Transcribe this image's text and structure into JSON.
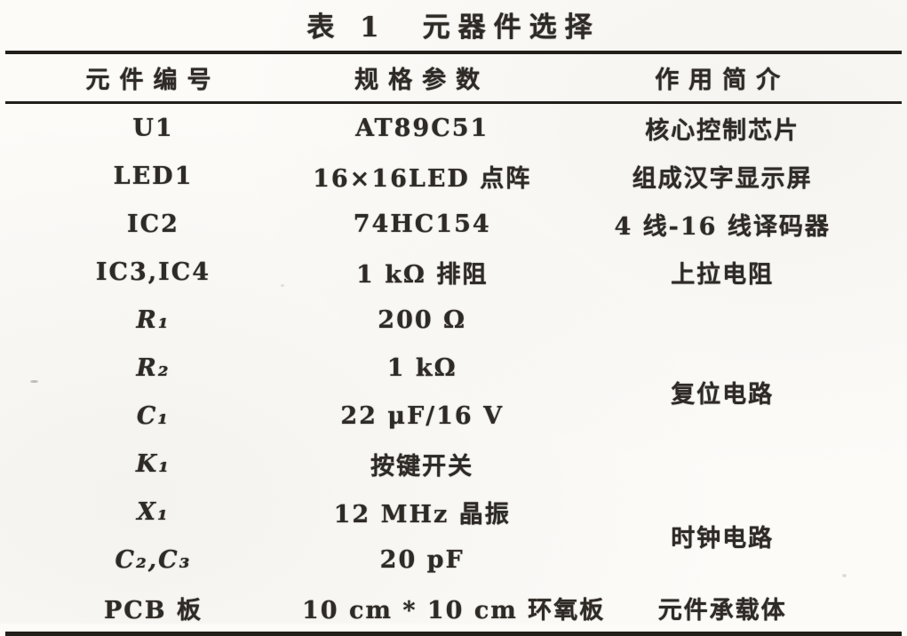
{
  "page": {
    "title": "表 1　元器件选择"
  },
  "table": {
    "headers": [
      "元件编号",
      "规格参数",
      "作用简介"
    ],
    "rows": [
      {
        "id": "U1",
        "spec": "AT89C51",
        "role": "核心控制芯片"
      },
      {
        "id": "LED1",
        "spec": "16×16LED 点阵",
        "role": "组成汉字显示屏"
      },
      {
        "id": "IC2",
        "spec": "74HC154",
        "role": "4 线-16 线译码器"
      },
      {
        "id": "IC3,IC4",
        "spec": "1 kΩ 排阻",
        "role": "上拉电阻"
      },
      {
        "id": "R₁",
        "spec": "200 Ω",
        "role": "复位电路"
      },
      {
        "id": "R₂",
        "spec": "1 kΩ"
      },
      {
        "id": "C₁",
        "spec": "22 μF/16 V"
      },
      {
        "id": "K₁",
        "spec": "按键开关"
      },
      {
        "id": "X₁",
        "spec": "12 MHz 晶振",
        "role": "时钟电路"
      },
      {
        "id": "C₂,C₃",
        "spec": "20 pF"
      },
      {
        "id": "PCB 板",
        "spec": "10 cm * 10 cm 环氧板",
        "role": "元件承载体"
      }
    ]
  },
  "colors": {
    "ink": "#2e2a26",
    "paper": "#fcfbf8",
    "rule": "#221f1b"
  }
}
